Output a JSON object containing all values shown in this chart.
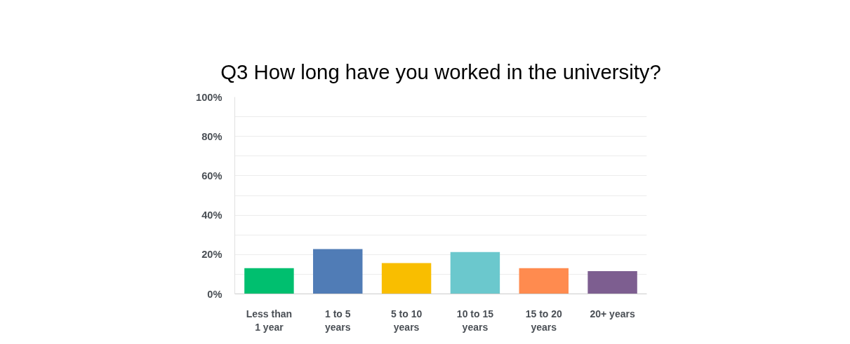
{
  "chart_data": {
    "type": "bar",
    "title": "Q3 How long have you worked in the university?",
    "categories": [
      "Less than 1 year",
      "1 to 5 years",
      "5 to 10 years",
      "10 to 15 years",
      "15 to 20 years",
      "20+ years"
    ],
    "values": [
      13.1,
      22.8,
      15.7,
      21.3,
      13.1,
      11.6
    ],
    "colors": [
      "#00bf6f",
      "#507cb6",
      "#f9be00",
      "#6bc8cd",
      "#ff8b4f",
      "#7d5e90"
    ],
    "ylim": [
      0,
      100
    ],
    "yticks": [
      {
        "value": 0,
        "label": "0%"
      },
      {
        "value": 10,
        "label": null
      },
      {
        "value": 20,
        "label": "20%"
      },
      {
        "value": 30,
        "label": null
      },
      {
        "value": 40,
        "label": "40%"
      },
      {
        "value": 50,
        "label": null
      },
      {
        "value": 60,
        "label": "60%"
      },
      {
        "value": 70,
        "label": null
      },
      {
        "value": 80,
        "label": "80%"
      },
      {
        "value": 90,
        "label": null
      },
      {
        "value": 100,
        "label": "100%"
      }
    ],
    "grid": "y"
  }
}
